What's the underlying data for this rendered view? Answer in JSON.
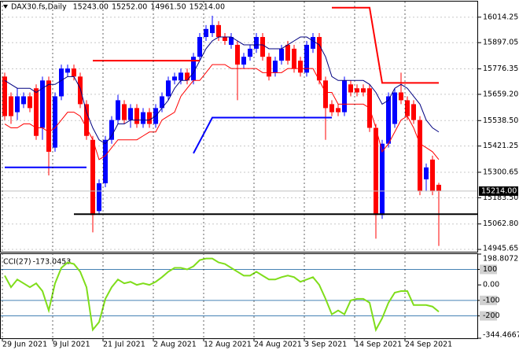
{
  "chart_data": [
    {
      "type": "candlestick",
      "title": "DAX30.fs,Daily",
      "header_values": [
        {
          "value": 15243,
          "label": "15243.00"
        },
        {
          "value": 15252,
          "label": "15252.00"
        },
        {
          "value": 14961.5,
          "label": "14961.50"
        },
        {
          "value": 15214,
          "label": "15214.00"
        }
      ],
      "categories": [
        "29 Jun 2021",
        null,
        null,
        null,
        null,
        null,
        null,
        null,
        "9 Jul 2021",
        null,
        null,
        null,
        null,
        null,
        null,
        null,
        "21 Jul 2021",
        null,
        null,
        null,
        null,
        null,
        null,
        null,
        "2 Aug 2021",
        null,
        null,
        null,
        null,
        null,
        null,
        null,
        "12 Aug 2021",
        null,
        null,
        null,
        null,
        null,
        null,
        null,
        "24 Aug 2021",
        null,
        null,
        null,
        null,
        null,
        null,
        null,
        "3 Sep 2021",
        null,
        null,
        null,
        null,
        null,
        null,
        null,
        "14 Sep 2021",
        null,
        null,
        null,
        null,
        null,
        null,
        null,
        "24 Sep 2021",
        null,
        null,
        null,
        null,
        null
      ],
      "open": [
        15741,
        15650,
        15577,
        15614,
        15650,
        15687,
        15505,
        15723,
        15414,
        15650,
        15759,
        15778,
        15741,
        15614,
        15450,
        15122,
        15250,
        15450,
        15541,
        15614,
        15541,
        15596,
        15523,
        15577,
        15523,
        15596,
        15650,
        15723,
        15723,
        15759,
        15723,
        15832,
        15923,
        15941,
        15978,
        15923,
        15887,
        15887,
        15796,
        15832,
        15869,
        15923,
        15832,
        15759,
        15814,
        15887,
        15869,
        15814,
        15759,
        15869,
        15923,
        15723,
        15614,
        15596,
        15577,
        15705,
        15687,
        15687,
        15687,
        15505,
        15104,
        15432,
        15523,
        15668,
        15632,
        15614,
        15541,
        15268,
        15359,
        15243
      ],
      "high": [
        15759,
        15668,
        15687,
        15668,
        15668,
        15705,
        15741,
        15741,
        15668,
        15796,
        15796,
        15796,
        15759,
        15632,
        15468,
        15268,
        15468,
        15559,
        15657,
        15632,
        15614,
        15614,
        15596,
        15596,
        15614,
        15668,
        15741,
        15759,
        15778,
        15778,
        15850,
        15941,
        15978,
        16021,
        15996,
        15941,
        15941,
        15905,
        15850,
        15887,
        15941,
        15941,
        15850,
        15832,
        15887,
        15905,
        15887,
        15832,
        15905,
        15941,
        15941,
        15741,
        15632,
        15614,
        15741,
        15723,
        15705,
        15705,
        15705,
        15523,
        15450,
        15668,
        15687,
        15759,
        15650,
        15632,
        15559,
        15341,
        15377,
        15252
      ],
      "low": [
        15541,
        15523,
        15541,
        15596,
        15577,
        15450,
        15450,
        15286,
        15395,
        15632,
        15741,
        15723,
        15596,
        15450,
        15024,
        15104,
        15232,
        15432,
        15523,
        15523,
        15505,
        15505,
        15505,
        15505,
        15505,
        15577,
        15632,
        15705,
        15705,
        15705,
        15705,
        15814,
        15905,
        15923,
        15905,
        15887,
        15869,
        15632,
        15778,
        15814,
        15850,
        15814,
        15723,
        15741,
        15796,
        15796,
        15759,
        15741,
        15741,
        15850,
        15705,
        15450,
        15559,
        15559,
        15559,
        15650,
        15650,
        15650,
        15486,
        14995,
        15086,
        15414,
        15505,
        15614,
        15541,
        15523,
        15195,
        15213,
        15195,
        14961.5
      ],
      "close": [
        15559,
        15559,
        15650,
        15650,
        15596,
        15468,
        15723,
        15395,
        15650,
        15778,
        15778,
        15741,
        15614,
        15468,
        15104,
        15250,
        15450,
        15541,
        15632,
        15541,
        15596,
        15523,
        15577,
        15523,
        15596,
        15650,
        15723,
        15741,
        15759,
        15723,
        15832,
        15923,
        15960,
        15978,
        15923,
        15905,
        15923,
        15796,
        15832,
        15869,
        15923,
        15832,
        15741,
        15814,
        15869,
        15814,
        15778,
        15759,
        15887,
        15923,
        15723,
        15596,
        15577,
        15577,
        15723,
        15668,
        15668,
        15668,
        15505,
        15104,
        15432,
        15650,
        15668,
        15632,
        15559,
        15541,
        15213,
        15323,
        15213,
        15214
      ],
      "up_color": "#0000ff",
      "down_color": "#ff0000",
      "series": [
        {
          "color": "#000080",
          "values": [
            15723,
            15705,
            15687,
            15687,
            15687,
            15668,
            15687,
            15705,
            15705,
            15723,
            15741,
            15741,
            15687,
            15577,
            15505,
            15450,
            15432,
            15468,
            15523,
            15523,
            15541,
            15541,
            15541,
            15541,
            15559,
            15596,
            15632,
            15687,
            15723,
            15723,
            15759,
            15814,
            15869,
            15905,
            15923,
            15923,
            15923,
            15905,
            15887,
            15887,
            15887,
            15887,
            15869,
            15869,
            15869,
            15887,
            15905,
            15923,
            15923,
            15905,
            15887,
            15832,
            15741,
            15723,
            15723,
            15723,
            15723,
            15723,
            15705,
            15668,
            15614,
            15632,
            15687,
            15705,
            15687,
            15650,
            15614,
            15541,
            15505,
            15486
          ]
        },
        {
          "color": "#ff0000",
          "values": [
            15523,
            15505,
            15505,
            15523,
            15523,
            15505,
            15505,
            15486,
            15505,
            15541,
            15577,
            15577,
            15559,
            15505,
            15450,
            15359,
            15377,
            15414,
            15450,
            15450,
            15450,
            15450,
            15468,
            15486,
            15486,
            15541,
            15559,
            15577,
            15650,
            15687,
            15723,
            15723,
            15759,
            15796,
            15796,
            15796,
            15778,
            15778,
            15778,
            15778,
            15778,
            15759,
            15759,
            15759,
            15759,
            15778,
            15778,
            15778,
            15778,
            15778,
            15723,
            15668,
            15668,
            15614,
            15614,
            15614,
            15614,
            15614,
            15596,
            15505,
            15395,
            15432,
            15486,
            15541,
            15559,
            15505,
            15432,
            15414,
            15395,
            15359
          ]
        }
      ],
      "lines": [
        {
          "color": "#ff0000",
          "x": [
            14,
            31
          ],
          "values": [
            15814,
            15814
          ]
        },
        {
          "color": "#ff0000",
          "x": [
            52,
            58,
            60,
            69
          ],
          "values": [
            16058,
            16058,
            15712,
            15712
          ]
        },
        {
          "color": "#0000ff",
          "x": [
            0,
            13
          ],
          "values": [
            15323,
            15323
          ]
        },
        {
          "color": "#0000ff",
          "x": [
            30,
            33,
            52
          ],
          "values": [
            15388,
            15552,
            15552
          ]
        },
        {
          "color": "#000000",
          "x": [
            11,
            76
          ],
          "values": [
            15108,
            15108
          ]
        }
      ],
      "last_price": {
        "value": 15214,
        "label": "15214.00"
      },
      "ylim": [
        14935,
        16086
      ],
      "yticks": [
        16014.25,
        15897.05,
        15776.35,
        {
          "value": 15659.2,
          "label": "15659.20"
        },
        {
          "value": 15538.5,
          "label": "15538.50"
        },
        15421.25,
        15300.65,
        {
          "value": 15183.5,
          "label": "15183.50"
        },
        {
          "value": 15062.8,
          "label": "15062.80"
        },
        14945.65
      ],
      "grid": true
    },
    {
      "type": "line",
      "title": "CCI(27)",
      "series": [
        {
          "color": "#7fdd1a",
          "values": [
            60,
            -15,
            35,
            10,
            -15,
            10,
            -40,
            -165,
            10,
            110,
            145,
            135,
            85,
            -15,
            -290,
            -240,
            -90,
            -15,
            35,
            10,
            20,
            0,
            10,
            0,
            20,
            50,
            85,
            110,
            110,
            100,
            120,
            160,
            170,
            170,
            145,
            135,
            110,
            85,
            60,
            60,
            85,
            60,
            35,
            35,
            50,
            60,
            50,
            20,
            35,
            50,
            0,
            -90,
            -190,
            -165,
            -190,
            -100,
            -90,
            -90,
            -115,
            -290,
            -215,
            -115,
            -50,
            -40,
            -40,
            -130,
            -130,
            -130,
            -140,
            -173.0453
          ]
        }
      ],
      "levels": [
        100,
        -100,
        -200
      ],
      "level_color": "#4682b4",
      "ylim": [
        -344.4667,
        198.8072
      ],
      "yticks": [
        198.8072,
        100,
        {
          "value": 0,
          "label": "0.00"
        },
        -100,
        -200,
        -344.4667
      ]
    }
  ]
}
